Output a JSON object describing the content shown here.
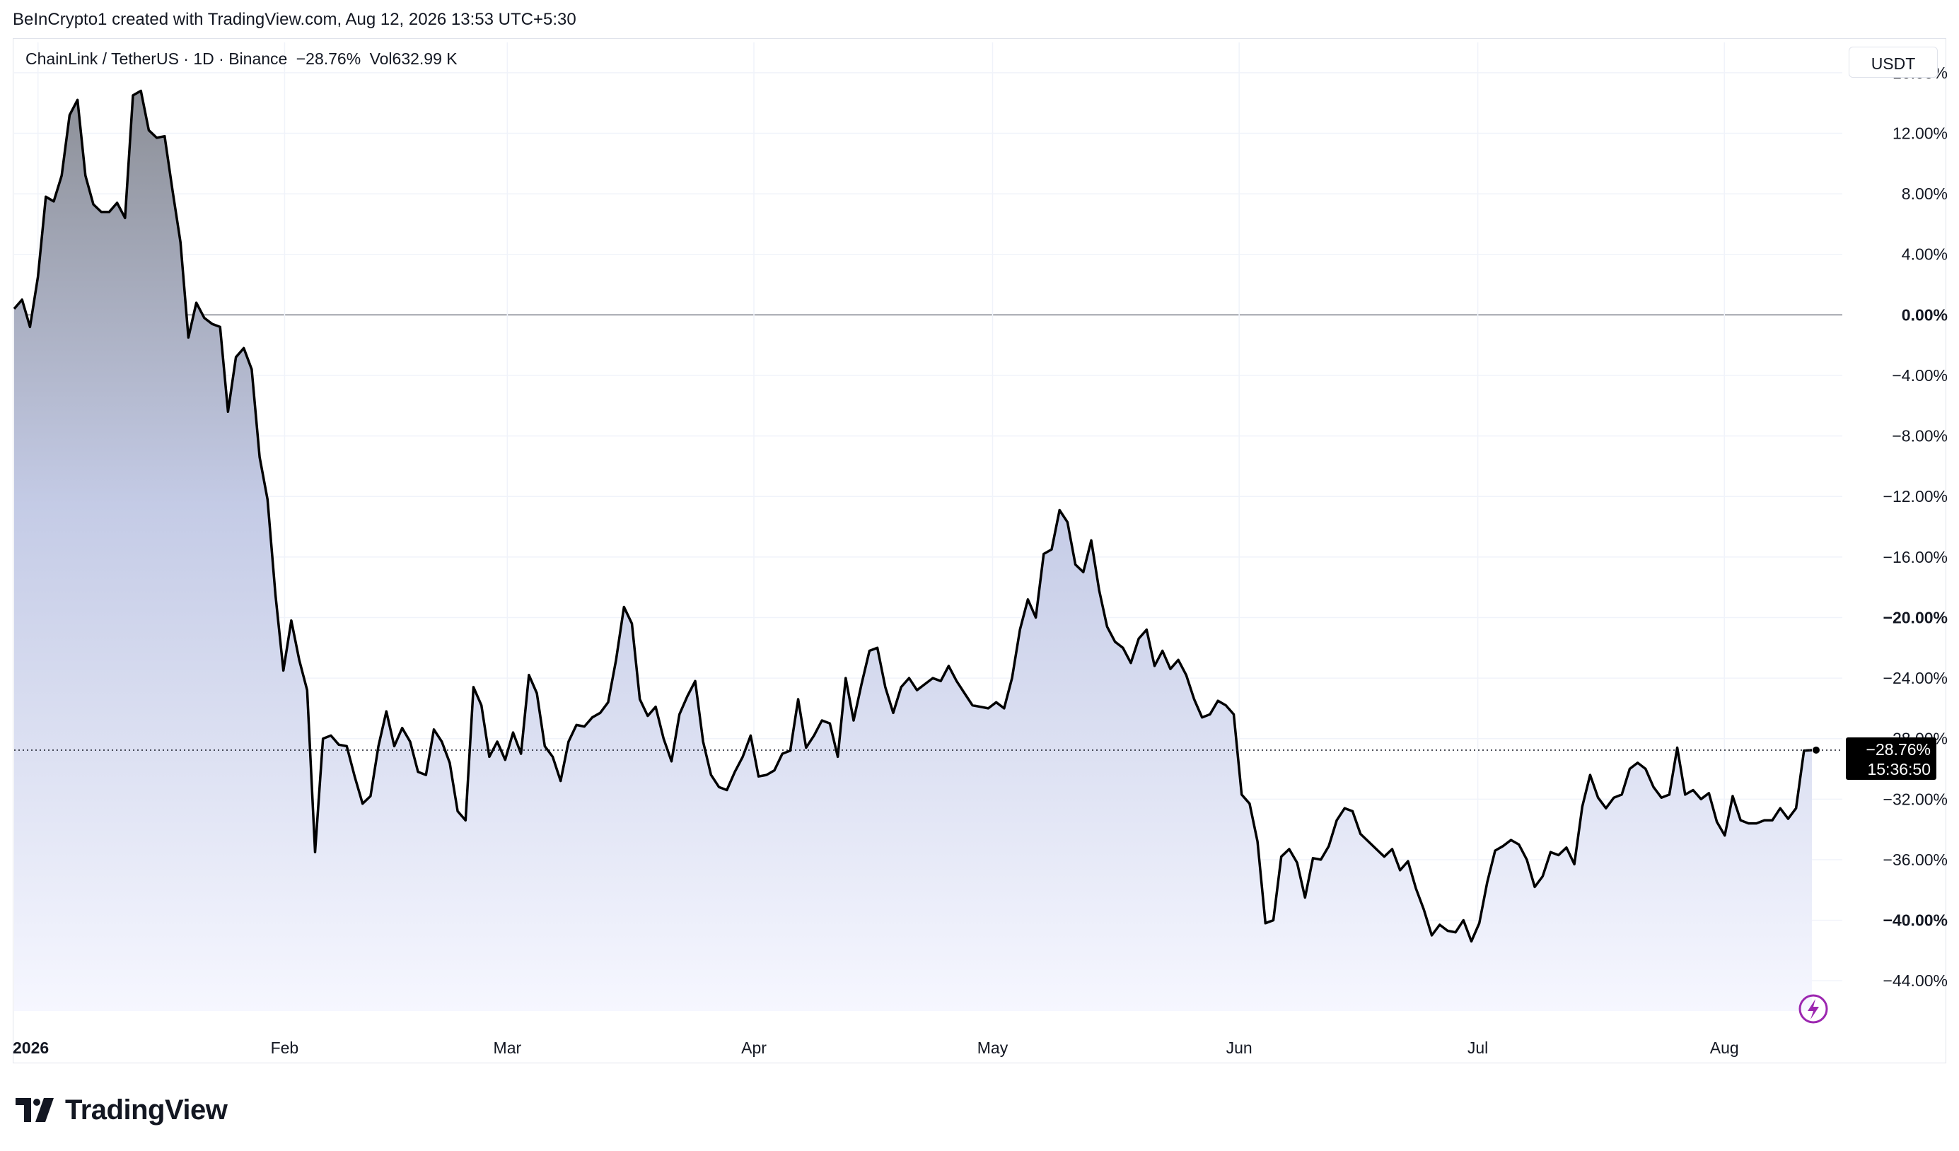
{
  "attribution": "BeInCrypto1 created with TradingView.com, Aug 12, 2026 13:53 UTC+5:30",
  "legend": {
    "symbol": "ChainLink / TetherUS · 1D · Binance",
    "change": "−28.76%",
    "volume_label": "Vol",
    "volume_value": "632.99 K"
  },
  "currency_button": "USDT",
  "last_label": {
    "value": "−28.76%",
    "countdown": "15:36:50"
  },
  "brand": "TradingView",
  "colors": {
    "line": "#000000",
    "fill_top": "#8c8f97",
    "fill_bottom": "#f1f3ff",
    "last_label_bg": "#000000",
    "badge": "#9c27b0"
  },
  "chart_data": {
    "type": "area",
    "ylim": [
      -46,
      18
    ],
    "y_ticks": [
      {
        "value": 16,
        "label": "16.00%",
        "bold": false
      },
      {
        "value": 12,
        "label": "12.00%",
        "bold": false
      },
      {
        "value": 8,
        "label": "8.00%",
        "bold": false
      },
      {
        "value": 4,
        "label": "4.00%",
        "bold": false
      },
      {
        "value": 0,
        "label": "0.00%",
        "bold": true
      },
      {
        "value": -4,
        "label": "−4.00%",
        "bold": false
      },
      {
        "value": -8,
        "label": "−8.00%",
        "bold": false
      },
      {
        "value": -12,
        "label": "−12.00%",
        "bold": false
      },
      {
        "value": -16,
        "label": "−16.00%",
        "bold": false
      },
      {
        "value": -20,
        "label": "−20.00%",
        "bold": true
      },
      {
        "value": -24,
        "label": "−24.00%",
        "bold": false
      },
      {
        "value": -28,
        "label": "−28.00%",
        "bold": false
      },
      {
        "value": -32,
        "label": "−32.00%",
        "bold": false
      },
      {
        "value": -36,
        "label": "−36.00%",
        "bold": false
      },
      {
        "value": -40,
        "label": "−40.00%",
        "bold": true
      },
      {
        "value": -44,
        "label": "−44.00%",
        "bold": false
      }
    ],
    "x_ticks": [
      {
        "date": "2026-01-01",
        "label": "2026",
        "bold": true
      },
      {
        "date": "2026-02-01",
        "label": "Feb",
        "bold": false
      },
      {
        "date": "2026-03-01",
        "label": "Mar",
        "bold": false
      },
      {
        "date": "2026-04-01",
        "label": "Apr",
        "bold": false
      },
      {
        "date": "2026-05-01",
        "label": "May",
        "bold": false
      },
      {
        "date": "2026-06-01",
        "label": "Jun",
        "bold": false
      },
      {
        "date": "2026-07-01",
        "label": "Jul",
        "bold": false
      },
      {
        "date": "2026-08-01",
        "label": "Aug",
        "bold": false
      }
    ],
    "x_start": "2025-12-29",
    "x_end": "2026-08-12",
    "series": [
      {
        "values": [
          0.4,
          1.0,
          -0.8,
          2.5,
          7.8,
          7.5,
          9.2,
          13.2,
          14.2,
          9.2,
          7.3,
          6.8,
          6.8,
          7.4,
          6.4,
          14.5,
          14.8,
          12.2,
          11.7,
          11.8,
          8.2,
          4.8,
          -1.5,
          0.8,
          -0.2,
          -0.6,
          -0.8,
          -6.4,
          -2.8,
          -2.2,
          -3.6,
          -9.4,
          -12.2,
          -18.5,
          -23.5,
          -20.2,
          -22.8,
          -24.8,
          -35.5,
          -28.0,
          -27.8,
          -28.4,
          -28.5,
          -30.5,
          -32.3,
          -31.8,
          -28.5,
          -26.2,
          -28.5,
          -27.3,
          -28.2,
          -30.2,
          -30.4,
          -27.4,
          -28.2,
          -29.6,
          -32.8,
          -33.4,
          -24.6,
          -25.8,
          -29.2,
          -28.2,
          -29.4,
          -27.6,
          -29.0,
          -23.8,
          -25.0,
          -28.5,
          -29.2,
          -30.8,
          -28.2,
          -27.1,
          -27.2,
          -26.6,
          -26.3,
          -25.6,
          -22.8,
          -19.3,
          -20.4,
          -25.4,
          -26.5,
          -25.9,
          -28.0,
          -29.5,
          -26.4,
          -25.2,
          -24.2,
          -28.2,
          -30.4,
          -31.2,
          -31.4,
          -30.2,
          -29.2,
          -27.8,
          -30.5,
          -30.4,
          -30.1,
          -29.0,
          -28.8,
          -25.4,
          -28.6,
          -27.8,
          -26.8,
          -27.0,
          -29.2,
          -24.0,
          -26.8,
          -24.4,
          -22.2,
          -22.0,
          -24.6,
          -26.3,
          -24.6,
          -24.0,
          -24.8,
          -24.4,
          -24.0,
          -24.2,
          -23.2,
          -24.2,
          -25.0,
          -25.8,
          -25.9,
          -26.0,
          -25.6,
          -26.0,
          -24.0,
          -20.8,
          -18.8,
          -20.0,
          -15.8,
          -15.5,
          -12.9,
          -13.7,
          -16.5,
          -17.0,
          -14.9,
          -18.2,
          -20.6,
          -21.6,
          -22.0,
          -23.0,
          -21.4,
          -20.8,
          -23.2,
          -22.2,
          -23.4,
          -22.8,
          -23.8,
          -25.4,
          -26.6,
          -26.4,
          -25.5,
          -25.8,
          -26.4,
          -31.7,
          -32.3,
          -34.8,
          -40.2,
          -40.0,
          -35.8,
          -35.3,
          -36.2,
          -38.5,
          -35.9,
          -36.0,
          -35.1,
          -33.4,
          -32.6,
          -32.8,
          -34.3,
          -34.8,
          -35.3,
          -35.8,
          -35.3,
          -36.7,
          -36.1,
          -37.9,
          -39.3,
          -41.0,
          -40.3,
          -40.7,
          -40.8,
          -40.0,
          -41.4,
          -40.2,
          -37.5,
          -35.4,
          -35.1,
          -34.7,
          -35.0,
          -36.0,
          -37.8,
          -37.1,
          -35.5,
          -35.7,
          -35.2,
          -36.3,
          -32.5,
          -30.4,
          -31.9,
          -32.6,
          -31.9,
          -31.7,
          -30.0,
          -29.6,
          -30.0,
          -31.2,
          -31.9,
          -31.7,
          -28.6,
          -31.7,
          -31.4,
          -32.0,
          -31.6,
          -33.5,
          -34.4,
          -31.8,
          -33.4,
          -33.6,
          -33.6,
          -33.4,
          -33.4,
          -32.6,
          -33.3,
          -32.6,
          -28.8,
          -28.76
        ]
      }
    ]
  }
}
